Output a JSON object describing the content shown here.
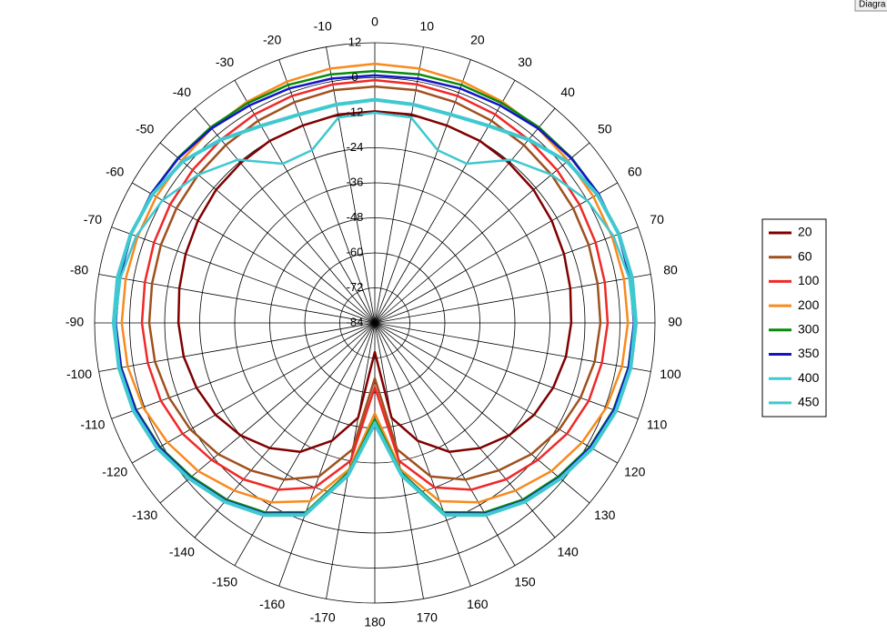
{
  "chart_data": {
    "type": "polar",
    "button_label": "Diagra",
    "theta": [
      0,
      10,
      20,
      30,
      40,
      50,
      60,
      70,
      80,
      90,
      100,
      110,
      120,
      130,
      140,
      150,
      160,
      170,
      180,
      -170,
      -160,
      -150,
      -140,
      -130,
      -120,
      -110,
      -100,
      -90,
      -80,
      -70,
      -60,
      -50,
      -40,
      -30,
      -20,
      -10
    ],
    "thetaticks": [
      0,
      10,
      20,
      30,
      40,
      50,
      60,
      70,
      80,
      90,
      100,
      110,
      120,
      130,
      140,
      150,
      160,
      170,
      180,
      -170,
      -160,
      -150,
      -140,
      -130,
      -120,
      -110,
      -100,
      -90,
      -80,
      -70,
      -60,
      -50,
      -40,
      -30,
      -20,
      -10
    ],
    "rlim": [
      -84,
      12
    ],
    "rticks": [
      -84,
      -72,
      -60,
      -48,
      -36,
      -24,
      -12,
      0,
      12
    ],
    "legend": "right",
    "series": [
      {
        "name": "20",
        "color": "#800000",
        "width": 2.5,
        "values": [
          -11.5,
          -11.5,
          -12,
          -12,
          -12.5,
          -13,
          -14,
          -15,
          -16,
          -16.7,
          -17.5,
          -19,
          -21,
          -24,
          -28,
          -33,
          -41,
          -51,
          -74,
          -51,
          -41,
          -33,
          -28,
          -24,
          -21,
          -19,
          -17.5,
          -16.7,
          -16,
          -15,
          -14,
          -13,
          -12.5,
          -12,
          -12,
          -11.5
        ]
      },
      {
        "name": "60",
        "color": "#a0501e",
        "width": 2.5,
        "values": [
          -3,
          -3,
          -3.5,
          -4,
          -4.5,
          -5,
          -5.5,
          -6,
          -6.5,
          -6.7,
          -7.5,
          -9,
          -11,
          -14,
          -18,
          -22,
          -28,
          -40,
          -65,
          -40,
          -28,
          -22,
          -18,
          -14,
          -11,
          -9,
          -7.5,
          -6.7,
          -6.5,
          -6,
          -5.5,
          -5,
          -4.5,
          -4,
          -3.5,
          -3
        ]
      },
      {
        "name": "100",
        "color": "#f02828",
        "width": 2.5,
        "values": [
          -0.8,
          -1,
          -1.2,
          -1.5,
          -2,
          -2.5,
          -3,
          -3.5,
          -4,
          -4.2,
          -5,
          -6,
          -8,
          -11,
          -14,
          -18,
          -24,
          -36,
          -62,
          -36,
          -24,
          -18,
          -14,
          -11,
          -8,
          -6,
          -5,
          -4.2,
          -4,
          -3.5,
          -3,
          -2.5,
          -2,
          -1.5,
          -1.2,
          -1
        ]
      },
      {
        "name": "200",
        "color": "#f88a1e",
        "width": 2.5,
        "values": [
          4.8,
          4.5,
          4,
          3.5,
          3,
          2.5,
          2.5,
          2.5,
          2.7,
          2.7,
          2,
          0.5,
          -2,
          -5,
          -9,
          -13,
          -19,
          -33,
          -53,
          -33,
          -19,
          -13,
          -9,
          -5,
          -2,
          0.5,
          2,
          2.7,
          2.7,
          2.5,
          2.5,
          2.5,
          3,
          3.5,
          4,
          4.5
        ]
      },
      {
        "name": "300",
        "color": "#0a8a0a",
        "width": 2.5,
        "values": [
          2.3,
          2.5,
          2.8,
          3,
          3.5,
          4,
          4.5,
          4.8,
          4.8,
          4.8,
          4.2,
          3,
          1,
          -2,
          -5,
          -9,
          -15,
          -32,
          -51,
          -32,
          -15,
          -9,
          -5,
          -2,
          1,
          3,
          4.2,
          4.8,
          4.8,
          4.8,
          4.5,
          4,
          3.5,
          3,
          2.8,
          2.5
        ]
      },
      {
        "name": "350",
        "color": "#1414c8",
        "width": 2.5,
        "values": [
          0.8,
          1,
          1.5,
          2,
          3,
          3.8,
          4.5,
          4.8,
          4.8,
          4.8,
          4.3,
          3.2,
          1.3,
          -1.5,
          -4.5,
          -8.5,
          -14.5,
          -31.5,
          -50,
          -31.5,
          -14.5,
          -8.5,
          -4.5,
          -1.5,
          1.3,
          3.2,
          4.3,
          4.8,
          4.8,
          4.8,
          4.5,
          3.8,
          3,
          2,
          1.5,
          1
        ]
      },
      {
        "name": "400",
        "color": "#40c8d0",
        "width": 2.5,
        "values": [
          -12,
          -12.5,
          -21,
          -21,
          -11,
          -5,
          0,
          3,
          4.5,
          5,
          4.8,
          3.8,
          1.8,
          -1,
          -4,
          -8,
          -14,
          -31,
          -50,
          -31,
          -14,
          -8,
          -4,
          -1,
          1.8,
          3.8,
          4.8,
          5,
          4.5,
          3,
          0,
          -5,
          -11,
          -21,
          -21,
          -12.5
        ]
      },
      {
        "name": "450",
        "color": "#40c8d0",
        "width": 4,
        "values": [
          -7.5,
          -8,
          -8,
          -6,
          -2,
          2,
          4,
          5,
          5.5,
          5.5,
          5,
          4,
          2,
          -1,
          -4,
          -8,
          -14,
          -31,
          -49.5,
          -31,
          -14,
          -8,
          -4,
          -1,
          2,
          4,
          5,
          5.5,
          5.5,
          5,
          4,
          2,
          -2,
          -6,
          -8,
          -8
        ]
      }
    ]
  }
}
